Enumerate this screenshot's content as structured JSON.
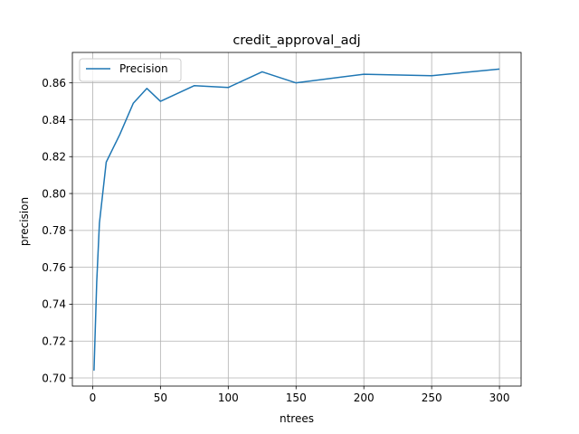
{
  "chart_data": {
    "type": "line",
    "title": "credit_approval_adj",
    "xlabel": "ntrees",
    "ylabel": "precision",
    "xlim": [
      -14.95,
      315.95
    ],
    "ylim": [
      0.6956,
      0.8765
    ],
    "xticks": [
      0,
      50,
      100,
      150,
      200,
      250,
      300
    ],
    "xtick_labels": [
      "0",
      "50",
      "100",
      "150",
      "200",
      "250",
      "300"
    ],
    "yticks": [
      0.7,
      0.72,
      0.74,
      0.76,
      0.78,
      0.8,
      0.82,
      0.84,
      0.86
    ],
    "ytick_labels": [
      "0.70",
      "0.72",
      "0.74",
      "0.76",
      "0.78",
      "0.80",
      "0.82",
      "0.84",
      "0.86"
    ],
    "grid": true,
    "legend_position": "top-left",
    "series": [
      {
        "name": "Precision",
        "color": "#1f77b4",
        "x": [
          1,
          3,
          5,
          10,
          20,
          30,
          40,
          50,
          75,
          100,
          125,
          150,
          200,
          250,
          300
        ],
        "y": [
          0.704,
          0.752,
          0.784,
          0.817,
          0.832,
          0.849,
          0.857,
          0.85,
          0.8585,
          0.8575,
          0.866,
          0.86,
          0.8647,
          0.8639,
          0.8675
        ]
      }
    ]
  }
}
